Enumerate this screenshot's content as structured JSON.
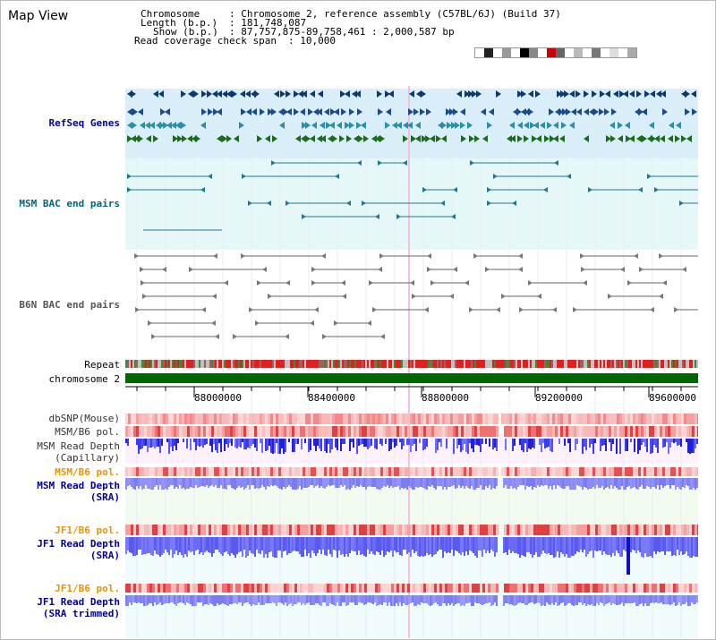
{
  "view_title": "Map View",
  "info": {
    "chromosome_label": "Chromosome",
    "chromosome_value": ": Chromosome 2, reference assembly (C57BL/6J) (Build 37)",
    "length_label": "Length (b.p.)",
    "length_value": ": 181,748,087",
    "show_label": "Show (b.p.)",
    "show_value": ": 87,757,875-89,758,461 : 2,000,587 bp",
    "coverage_label": "Read coverage check span",
    "coverage_value": ": 10,000"
  },
  "tracks": {
    "refseq": {
      "label": "RefSeq Genes",
      "color": "#000099"
    },
    "msm_bac": {
      "label": "MSM BAC end pairs",
      "color": "#006680"
    },
    "b6n_bac": {
      "label": "B6N BAC end pairs",
      "color": "#555555"
    },
    "repeat": {
      "label": "Repeat",
      "color": "#000000"
    },
    "chromosome": {
      "label": "chromosome 2",
      "color": "#000000"
    },
    "dbsnp": {
      "label": "dbSNP(Mouse)",
      "color": "#333333"
    },
    "msm_b6_pol_1": {
      "label": "MSM/B6 pol.",
      "color": "#333333"
    },
    "msm_depth_cap": {
      "label": "MSM Read Depth\n(Capillary)",
      "color": "#333333"
    },
    "msm_b6_pol_2": {
      "label": "MSM/B6 pol.",
      "color": "#e69500"
    },
    "msm_depth_sra": {
      "label": "MSM Read Depth\n(SRA)",
      "color": "#000099"
    },
    "jf1_b6_pol_1": {
      "label": "JF1/B6 pol.",
      "color": "#e69500"
    },
    "jf1_depth_sra": {
      "label": "JF1 Read Depth\n(SRA)",
      "color": "#000099"
    },
    "jf1_b6_pol_2": {
      "label": "JF1/B6 pol.",
      "color": "#e69500"
    },
    "jf1_depth_trim": {
      "label": "JF1 Read Depth\n(SRA trimmed)",
      "color": "#000099"
    }
  },
  "axis_ticks": [
    "88000000",
    "88400000",
    "88800000",
    "89200000",
    "89600000"
  ]
}
